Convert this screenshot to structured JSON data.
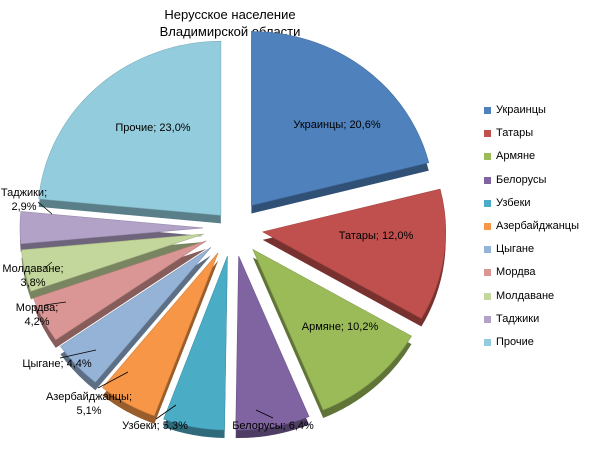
{
  "chart_data": {
    "type": "pie",
    "title": "Нерусское население",
    "subtitle": "Владимирской области",
    "legend_position": "right",
    "exploded": true,
    "style": "3d",
    "slices": [
      {
        "name": "Украинцы",
        "value": 20.6,
        "label": "Украинцы; 20,6%",
        "color": "#4F81BD"
      },
      {
        "name": "Татары",
        "value": 12.0,
        "label": "Татары; 12,0%",
        "color": "#C0504D"
      },
      {
        "name": "Армяне",
        "value": 10.2,
        "label": "Армяне; 10,2%",
        "color": "#9BBB59"
      },
      {
        "name": "Белорусы",
        "value": 6.4,
        "label": "Белорусы; 6,4%",
        "color": "#8064A2"
      },
      {
        "name": "Узбеки",
        "value": 5.3,
        "label": "Узбеки; 5,3%",
        "color": "#4BACC6"
      },
      {
        "name": "Азербайджанцы",
        "value": 5.1,
        "label": "Азербайджанцы; 5,1%",
        "color": "#F79646"
      },
      {
        "name": "Цыгане",
        "value": 4.4,
        "label": "Цыгане; 4,4%",
        "color": "#95B3D7"
      },
      {
        "name": "Мордва",
        "value": 4.2,
        "label": "Мордва; 4,2%",
        "color": "#D99694"
      },
      {
        "name": "Молдаване",
        "value": 3.8,
        "label": "Молдаване; 3,8%",
        "color": "#C3D69B"
      },
      {
        "name": "Таджики",
        "value": 2.9,
        "label": "Таджики; 2,9%",
        "color": "#B2A2C7"
      },
      {
        "name": "Прочие",
        "value": 23.0,
        "label": "Прочие; 23,0%",
        "color": "#93CDDD"
      }
    ]
  }
}
